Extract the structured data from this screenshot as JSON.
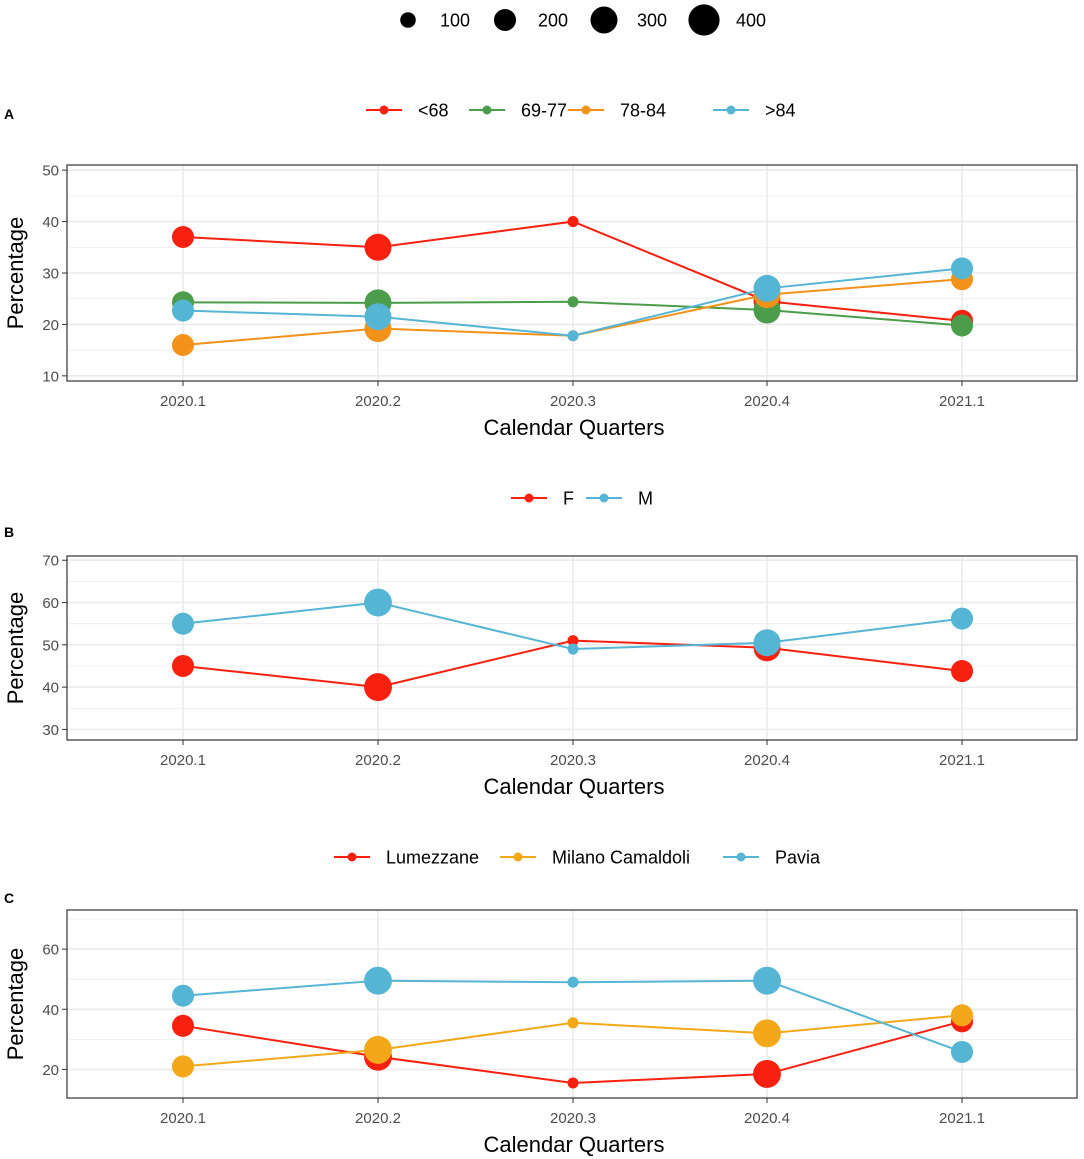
{
  "size_legend": {
    "title": "",
    "items": [
      {
        "label": "100",
        "value": 100
      },
      {
        "label": "200",
        "value": 200
      },
      {
        "label": "300",
        "value": 300
      },
      {
        "label": "400",
        "value": 400
      }
    ]
  },
  "chart_data": [
    {
      "type": "line",
      "panel": "A",
      "title": "",
      "xlabel": "Calendar Quarters",
      "ylabel": "Percentage",
      "categories": [
        "2020.1",
        "2020.2",
        "2020.3",
        "2020.4",
        "2021.1"
      ],
      "ylim": [
        9,
        51
      ],
      "yticks": [
        10,
        20,
        30,
        40,
        50
      ],
      "grid": true,
      "legend_position": "top",
      "series": [
        {
          "name": "<68",
          "color": "#F8200F",
          "values": [
            37,
            35,
            40,
            24.5,
            20.7
          ],
          "sizes": [
            200,
            300,
            50,
            300,
            200
          ]
        },
        {
          "name": "69-77",
          "color": "#4B9C4B",
          "values": [
            24.3,
            24.2,
            24.4,
            22.8,
            19.8
          ],
          "sizes": [
            200,
            300,
            50,
            300,
            200
          ]
        },
        {
          "name": "78-84",
          "color": "#F39218",
          "values": [
            16,
            19.2,
            17.8,
            25.8,
            28.8
          ],
          "sizes": [
            200,
            300,
            50,
            300,
            200
          ]
        },
        {
          "name": ">84",
          "color": "#55B5D5",
          "values": [
            22.7,
            21.5,
            17.8,
            27,
            30.9
          ],
          "sizes": [
            200,
            300,
            50,
            300,
            200
          ]
        }
      ]
    },
    {
      "type": "line",
      "panel": "B",
      "title": "",
      "xlabel": "Calendar Quarters",
      "ylabel": "Percentage",
      "categories": [
        "2020.1",
        "2020.2",
        "2020.3",
        "2020.4",
        "2021.1"
      ],
      "ylim": [
        27.5,
        71
      ],
      "yticks": [
        30,
        40,
        50,
        60,
        70
      ],
      "grid": true,
      "legend_position": "top",
      "series": [
        {
          "name": "F",
          "color": "#F8200F",
          "values": [
            45,
            40,
            51,
            49.3,
            43.8
          ],
          "sizes": [
            200,
            320,
            50,
            300,
            200
          ]
        },
        {
          "name": "M",
          "color": "#55B5D5",
          "values": [
            55,
            60,
            49,
            50.5,
            56.2
          ],
          "sizes": [
            200,
            320,
            50,
            300,
            200
          ]
        }
      ]
    },
    {
      "type": "line",
      "panel": "C",
      "title": "",
      "xlabel": "Calendar Quarters",
      "ylabel": "Percentage",
      "categories": [
        "2020.1",
        "2020.2",
        "2020.3",
        "2020.4",
        "2021.1"
      ],
      "ylim": [
        10.5,
        73
      ],
      "yticks": [
        20,
        40,
        60
      ],
      "grid": true,
      "legend_position": "top",
      "series": [
        {
          "name": "Lumezzane",
          "color": "#F8200F",
          "values": [
            34.5,
            24.2,
            15.5,
            18.5,
            36
          ],
          "sizes": [
            200,
            320,
            50,
            320,
            200
          ]
        },
        {
          "name": "Milano Camaldoli",
          "color": "#F2A818",
          "values": [
            21,
            26.5,
            35.5,
            32,
            38
          ],
          "sizes": [
            200,
            320,
            50,
            320,
            200
          ]
        },
        {
          "name": "Pavia",
          "color": "#55B5D5",
          "values": [
            44.5,
            49.5,
            49,
            49.5,
            25.8
          ],
          "sizes": [
            200,
            320,
            50,
            320,
            200
          ]
        }
      ]
    }
  ]
}
